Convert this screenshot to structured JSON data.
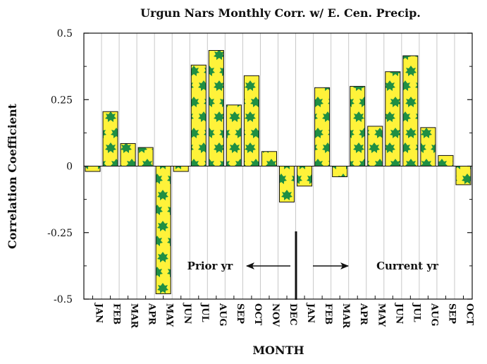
{
  "chart_data": {
    "type": "bar",
    "title": "Urgun Nars Monthly Corr. w/ E. Cen.  Precip.",
    "xlabel": "MONTH",
    "ylabel": "Correlation Coefficient",
    "ylim": [
      -0.5,
      0.5
    ],
    "yticks": [
      -0.5,
      -0.25,
      0,
      0.25,
      0.5
    ],
    "ytick_labels": [
      "-0.5",
      "-0.25",
      "0",
      "0.25",
      "0.5"
    ],
    "grid": "vertical",
    "categories": [
      "JAN",
      "FEB",
      "MAR",
      "APR",
      "MAY",
      "JUN",
      "JUL",
      "AUG",
      "SEP",
      "OCT",
      "NOV",
      "DEC",
      "JAN",
      "FEB",
      "MAR",
      "APR",
      "MAY",
      "JUN",
      "JUL",
      "AUG",
      "SEP",
      "OCT"
    ],
    "values": [
      -0.02,
      0.205,
      0.085,
      0.07,
      -0.48,
      -0.02,
      0.38,
      0.435,
      0.23,
      0.34,
      0.055,
      -0.135,
      -0.075,
      0.295,
      -0.04,
      0.3,
      0.15,
      0.355,
      0.415,
      0.145,
      0.04,
      -0.07
    ],
    "annotations": {
      "prior": "Prior yr",
      "current": "Current yr"
    },
    "colors": {
      "bar_fill": "#fff23a",
      "leaf": "#1f8f43",
      "outline": "#111111",
      "grid": "#c8c8c8"
    }
  }
}
